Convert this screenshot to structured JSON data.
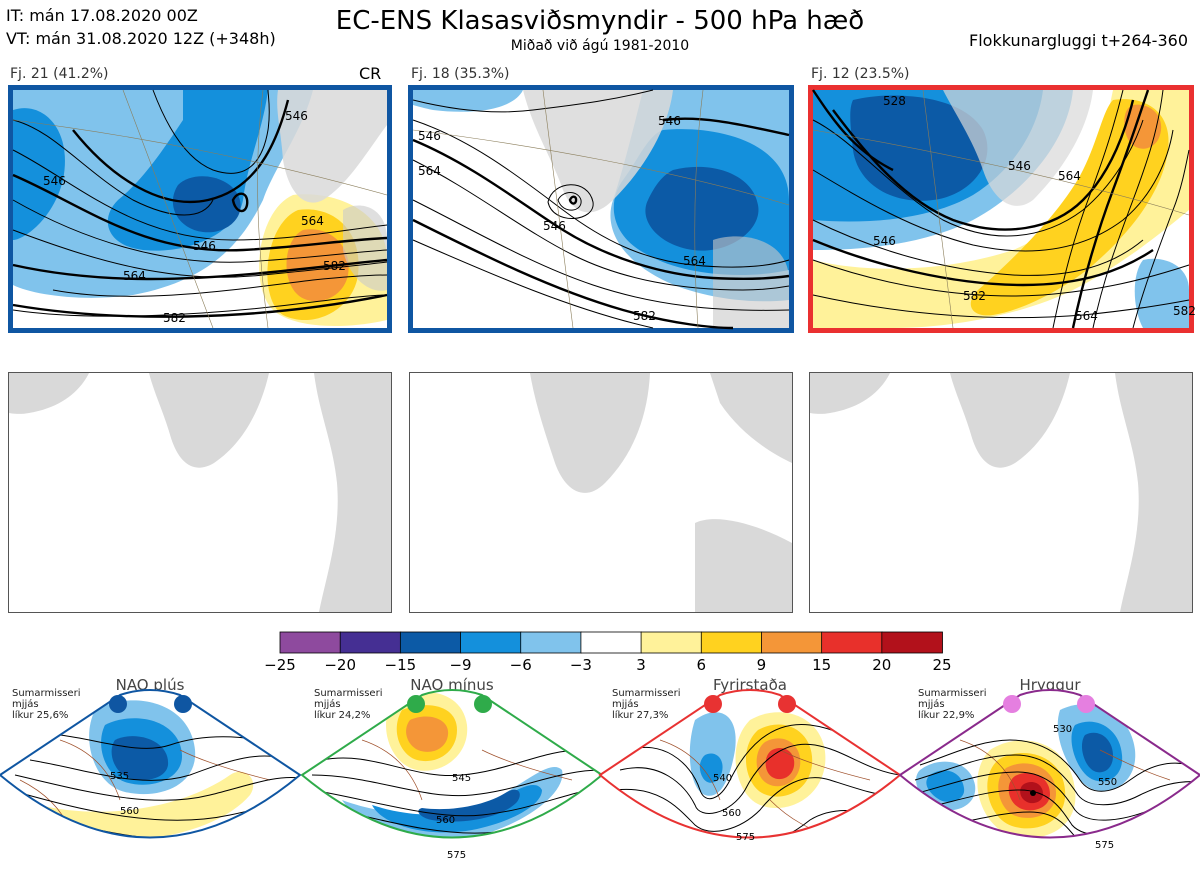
{
  "header": {
    "it_line": "IT: mán 17.08.2020 00Z",
    "vt_line": "VT: mán 31.08.2020 12Z  (+348h)",
    "title": "EC-ENS Klasasviðsmyndir - 500 hPa hæð",
    "subtitle": "Miðað við ágú 1981-2010",
    "window": "Flokkunargluggi t+264-360"
  },
  "clusters": [
    {
      "label": "Fj. 21 (41.2%)",
      "tag": "CR",
      "frame_color": "#0f56a2",
      "contour_labels": [
        "546",
        "546",
        "546",
        "564",
        "564",
        "582",
        "582"
      ]
    },
    {
      "label": "Fj. 18 (35.3%)",
      "tag": "",
      "frame_color": "#0f56a2",
      "contour_labels": [
        "546",
        "546",
        "564",
        "564",
        "582",
        "546"
      ]
    },
    {
      "label": "Fj. 12 (23.5%)",
      "tag": "",
      "frame_color": "#ea3030",
      "contour_labels": [
        "528",
        "546",
        "546",
        "564",
        "582",
        "564",
        "582"
      ]
    }
  ],
  "colorbar": {
    "ticks": [
      "−25",
      "−20",
      "−15",
      "−9",
      "−6",
      "−3",
      "3",
      "6",
      "9",
      "15",
      "20",
      "25"
    ],
    "colors": [
      "#8e4a9e",
      "#452f93",
      "#0c5aa6",
      "#1490dc",
      "#80c3ec",
      "#ffffff",
      "#fff29a",
      "#ffd21f",
      "#f49638",
      "#e8302b",
      "#b2111b"
    ]
  },
  "regimes": [
    {
      "name": "NAO plús",
      "note": [
        "Sumarmisseri",
        "mjjás",
        "líkur 25,6%"
      ],
      "edge_color": "#0f56a2",
      "dot_color": "#0f56a2",
      "contour_labels": [
        "535",
        "560"
      ]
    },
    {
      "name": "NAO mínus",
      "note": [
        "Sumarmisseri",
        "mjjás",
        "líkur 24,2%"
      ],
      "edge_color": "#2fab4a",
      "dot_color": "#2fab4a",
      "contour_labels": [
        "545",
        "560",
        "575"
      ]
    },
    {
      "name": "Fyrirstaða",
      "note": [
        "Sumarmisseri",
        "mjjás",
        "líkur 27,3%"
      ],
      "edge_color": "#e83232",
      "dot_color": "#e83232",
      "contour_labels": [
        "540",
        "560",
        "575"
      ]
    },
    {
      "name": "Hryggur",
      "note": [
        "Sumarmisseri",
        "mjjás",
        "líkur 22,9%"
      ],
      "edge_color": "#8a2a8c",
      "dot_color": "#e57fe0",
      "contour_labels": [
        "530",
        "550",
        "575"
      ]
    }
  ]
}
